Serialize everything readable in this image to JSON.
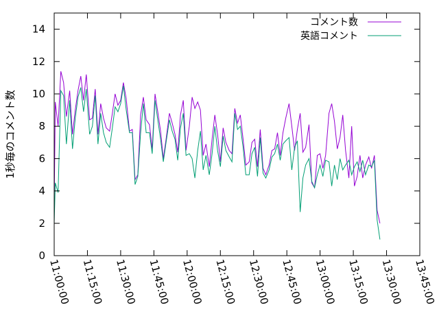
{
  "chart_data": {
    "type": "line",
    "title": "",
    "xlabel": "",
    "ylabel": "1秒毎のコメント数",
    "xlim": [
      "11:00:00",
      "13:45:00"
    ],
    "ylim": [
      0,
      15
    ],
    "x_ticks": [
      "11:00:00",
      "11:15:00",
      "11:30:00",
      "11:45:00",
      "12:00:00",
      "12:15:00",
      "12:30:00",
      "12:45:00",
      "13:00:00",
      "13:15:00",
      "13:30:00",
      "13:45:00"
    ],
    "y_ticks": [
      "0",
      "2",
      "4",
      "6",
      "8",
      "10",
      "12",
      "14"
    ],
    "legend_position": "top-right",
    "grid": false,
    "series": [
      {
        "name": "コメント数",
        "color": "#9400d3",
        "points": [
          [
            "11:00:00",
            3.0
          ],
          [
            "11:00:30",
            9.5
          ],
          [
            "11:01:45",
            8.0
          ],
          [
            "11:03:00",
            11.4
          ],
          [
            "11:04:15",
            10.7
          ],
          [
            "11:05:30",
            8.6
          ],
          [
            "11:07:00",
            10.2
          ],
          [
            "11:08:15",
            7.5
          ],
          [
            "11:09:30",
            9.0
          ],
          [
            "11:10:45",
            10.2
          ],
          [
            "11:12:00",
            11.1
          ],
          [
            "11:13:15",
            9.6
          ],
          [
            "11:14:30",
            11.2
          ],
          [
            "11:16:00",
            8.4
          ],
          [
            "11:17:15",
            8.5
          ],
          [
            "11:18:30",
            10.3
          ],
          [
            "11:19:45",
            7.5
          ],
          [
            "11:21:00",
            9.4
          ],
          [
            "11:22:15",
            8.5
          ],
          [
            "11:23:30",
            7.9
          ],
          [
            "11:25:00",
            7.7
          ],
          [
            "11:26:15",
            8.8
          ],
          [
            "11:27:30",
            10.0
          ],
          [
            "11:28:45",
            9.3
          ],
          [
            "11:30:00",
            9.6
          ],
          [
            "11:31:15",
            10.7
          ],
          [
            "11:32:30",
            9.7
          ],
          [
            "11:34:00",
            7.7
          ],
          [
            "11:35:15",
            7.8
          ],
          [
            "11:36:30",
            4.7
          ],
          [
            "11:37:45",
            5.0
          ],
          [
            "11:39:00",
            8.7
          ],
          [
            "11:40:15",
            9.8
          ],
          [
            "11:41:30",
            8.4
          ],
          [
            "11:43:00",
            8.1
          ],
          [
            "11:44:15",
            6.6
          ],
          [
            "11:45:30",
            10.0
          ],
          [
            "11:46:45",
            8.9
          ],
          [
            "11:48:00",
            7.7
          ],
          [
            "11:49:15",
            6.0
          ],
          [
            "11:50:30",
            7.2
          ],
          [
            "11:52:00",
            8.8
          ],
          [
            "11:53:15",
            8.2
          ],
          [
            "11:54:30",
            7.5
          ],
          [
            "11:55:45",
            6.4
          ],
          [
            "11:57:00",
            8.7
          ],
          [
            "11:58:15",
            9.6
          ],
          [
            "11:59:30",
            6.5
          ],
          [
            "12:01:00",
            8.0
          ],
          [
            "12:02:15",
            9.8
          ],
          [
            "12:03:30",
            9.1
          ],
          [
            "12:04:45",
            9.5
          ],
          [
            "12:06:00",
            9.0
          ],
          [
            "12:07:15",
            6.2
          ],
          [
            "12:08:30",
            6.9
          ],
          [
            "12:10:00",
            5.5
          ],
          [
            "12:11:15",
            7.2
          ],
          [
            "12:12:30",
            8.7
          ],
          [
            "12:13:45",
            7.5
          ],
          [
            "12:15:00",
            5.8
          ],
          [
            "12:16:15",
            7.9
          ],
          [
            "12:17:30",
            7.0
          ],
          [
            "12:19:00",
            6.5
          ],
          [
            "12:20:15",
            6.3
          ],
          [
            "12:21:30",
            9.1
          ],
          [
            "12:22:45",
            8.2
          ],
          [
            "12:24:00",
            8.7
          ],
          [
            "12:25:15",
            7.2
          ],
          [
            "12:26:30",
            5.6
          ],
          [
            "12:28:00",
            5.8
          ],
          [
            "12:29:15",
            7.0
          ],
          [
            "12:30:30",
            7.2
          ],
          [
            "12:31:45",
            5.5
          ],
          [
            "12:33:00",
            7.8
          ],
          [
            "12:34:15",
            5.4
          ],
          [
            "12:35:30",
            5.0
          ],
          [
            "12:37:00",
            5.6
          ],
          [
            "12:38:15",
            6.5
          ],
          [
            "12:39:30",
            6.6
          ],
          [
            "12:40:45",
            7.6
          ],
          [
            "12:42:00",
            6.2
          ],
          [
            "12:43:15",
            7.6
          ],
          [
            "12:44:30",
            8.5
          ],
          [
            "12:46:00",
            9.4
          ],
          [
            "12:47:15",
            8.0
          ],
          [
            "12:48:30",
            6.5
          ],
          [
            "12:49:45",
            7.8
          ],
          [
            "12:51:00",
            8.8
          ],
          [
            "12:52:15",
            6.4
          ],
          [
            "12:53:30",
            6.7
          ],
          [
            "12:55:00",
            8.1
          ],
          [
            "12:56:15",
            4.5
          ],
          [
            "12:57:30",
            4.2
          ],
          [
            "12:58:45",
            6.2
          ],
          [
            "13:00:00",
            6.3
          ],
          [
            "13:01:15",
            5.4
          ],
          [
            "13:02:30",
            6.2
          ],
          [
            "13:04:00",
            8.8
          ],
          [
            "13:05:15",
            9.4
          ],
          [
            "13:06:30",
            8.3
          ],
          [
            "13:07:45",
            6.6
          ],
          [
            "13:09:00",
            7.3
          ],
          [
            "13:10:15",
            8.7
          ],
          [
            "13:11:30",
            6.5
          ],
          [
            "13:13:00",
            4.8
          ],
          [
            "13:14:15",
            8.0
          ],
          [
            "13:15:30",
            4.3
          ],
          [
            "13:16:45",
            4.9
          ],
          [
            "13:18:00",
            6.2
          ],
          [
            "13:19:15",
            4.8
          ],
          [
            "13:20:30",
            5.6
          ],
          [
            "13:22:00",
            6.1
          ],
          [
            "13:23:15",
            5.4
          ],
          [
            "13:24:30",
            6.2
          ],
          [
            "13:25:45",
            2.8
          ],
          [
            "13:27:00",
            2.0
          ]
        ]
      },
      {
        "name": "英語コメント",
        "color": "#009e73",
        "points": [
          [
            "11:00:00",
            2.0
          ],
          [
            "11:00:30",
            4.5
          ],
          [
            "11:01:45",
            3.9
          ],
          [
            "11:03:00",
            10.2
          ],
          [
            "11:04:15",
            9.9
          ],
          [
            "11:05:30",
            6.9
          ],
          [
            "11:07:00",
            9.6
          ],
          [
            "11:08:15",
            6.6
          ],
          [
            "11:09:30",
            8.5
          ],
          [
            "11:10:45",
            9.8
          ],
          [
            "11:12:00",
            10.4
          ],
          [
            "11:13:15",
            8.9
          ],
          [
            "11:14:30",
            10.3
          ],
          [
            "11:16:00",
            7.5
          ],
          [
            "11:17:15",
            8.0
          ],
          [
            "11:18:30",
            9.9
          ],
          [
            "11:19:45",
            6.9
          ],
          [
            "11:21:00",
            8.8
          ],
          [
            "11:22:15",
            7.6
          ],
          [
            "11:23:30",
            7.0
          ],
          [
            "11:25:00",
            6.7
          ],
          [
            "11:26:15",
            7.9
          ],
          [
            "11:27:30",
            9.2
          ],
          [
            "11:28:45",
            8.9
          ],
          [
            "11:30:00",
            9.4
          ],
          [
            "11:31:15",
            10.5
          ],
          [
            "11:32:30",
            9.0
          ],
          [
            "11:34:00",
            7.6
          ],
          [
            "11:35:15",
            7.6
          ],
          [
            "11:36:30",
            4.4
          ],
          [
            "11:37:45",
            4.9
          ],
          [
            "11:39:00",
            7.6
          ],
          [
            "11:40:15",
            9.4
          ],
          [
            "11:41:30",
            7.6
          ],
          [
            "11:43:00",
            7.6
          ],
          [
            "11:44:15",
            6.3
          ],
          [
            "11:45:30",
            9.6
          ],
          [
            "11:46:45",
            8.4
          ],
          [
            "11:48:00",
            7.2
          ],
          [
            "11:49:15",
            5.8
          ],
          [
            "11:50:30",
            7.0
          ],
          [
            "11:52:00",
            8.4
          ],
          [
            "11:53:15",
            7.7
          ],
          [
            "11:54:30",
            7.2
          ],
          [
            "11:55:45",
            5.9
          ],
          [
            "11:57:00",
            7.9
          ],
          [
            "11:58:15",
            8.8
          ],
          [
            "11:59:30",
            6.2
          ],
          [
            "12:01:00",
            6.3
          ],
          [
            "12:02:15",
            6.0
          ],
          [
            "12:03:30",
            4.8
          ],
          [
            "12:04:45",
            6.5
          ],
          [
            "12:06:00",
            7.7
          ],
          [
            "12:07:15",
            5.3
          ],
          [
            "12:08:30",
            6.2
          ],
          [
            "12:10:00",
            5.0
          ],
          [
            "12:11:15",
            6.3
          ],
          [
            "12:12:30",
            8.0
          ],
          [
            "12:13:45",
            6.5
          ],
          [
            "12:15:00",
            5.5
          ],
          [
            "12:16:15",
            7.4
          ],
          [
            "12:17:30",
            6.5
          ],
          [
            "12:19:00",
            6.1
          ],
          [
            "12:20:15",
            5.8
          ],
          [
            "12:21:30",
            8.8
          ],
          [
            "12:22:45",
            7.8
          ],
          [
            "12:24:00",
            8.0
          ],
          [
            "12:25:15",
            6.7
          ],
          [
            "12:26:30",
            5.0
          ],
          [
            "12:28:00",
            5.0
          ],
          [
            "12:29:15",
            6.3
          ],
          [
            "12:30:30",
            6.7
          ],
          [
            "12:31:45",
            4.9
          ],
          [
            "12:33:00",
            7.3
          ],
          [
            "12:34:15",
            5.1
          ],
          [
            "12:35:30",
            4.8
          ],
          [
            "12:37:00",
            5.3
          ],
          [
            "12:38:15",
            6.1
          ],
          [
            "12:39:30",
            6.3
          ],
          [
            "12:40:45",
            6.9
          ],
          [
            "12:42:00",
            5.9
          ],
          [
            "12:43:15",
            6.9
          ],
          [
            "12:44:30",
            7.1
          ],
          [
            "12:46:00",
            7.3
          ],
          [
            "12:47:15",
            5.3
          ],
          [
            "12:48:30",
            6.7
          ],
          [
            "12:49:45",
            7.1
          ],
          [
            "12:51:00",
            2.7
          ],
          [
            "12:52:15",
            4.8
          ],
          [
            "12:53:30",
            5.6
          ],
          [
            "12:55:00",
            6.0
          ],
          [
            "12:56:15",
            4.6
          ],
          [
            "12:57:30",
            4.2
          ],
          [
            "12:58:45",
            5.0
          ],
          [
            "13:00:00",
            5.6
          ],
          [
            "13:01:15",
            4.9
          ],
          [
            "13:02:30",
            5.9
          ],
          [
            "13:04:00",
            5.8
          ],
          [
            "13:05:15",
            4.3
          ],
          [
            "13:06:30",
            5.6
          ],
          [
            "13:07:45",
            4.7
          ],
          [
            "13:09:00",
            6.0
          ],
          [
            "13:10:15",
            5.3
          ],
          [
            "13:11:30",
            5.6
          ],
          [
            "13:13:00",
            5.9
          ],
          [
            "13:14:15",
            5.0
          ],
          [
            "13:15:30",
            5.5
          ],
          [
            "13:16:45",
            5.8
          ],
          [
            "13:18:00",
            5.2
          ],
          [
            "13:19:15",
            5.9
          ],
          [
            "13:20:30",
            5.0
          ],
          [
            "13:22:00",
            5.6
          ],
          [
            "13:23:15",
            5.5
          ],
          [
            "13:24:30",
            5.9
          ],
          [
            "13:25:45",
            2.2
          ],
          [
            "13:27:00",
            1.0
          ]
        ]
      }
    ]
  }
}
